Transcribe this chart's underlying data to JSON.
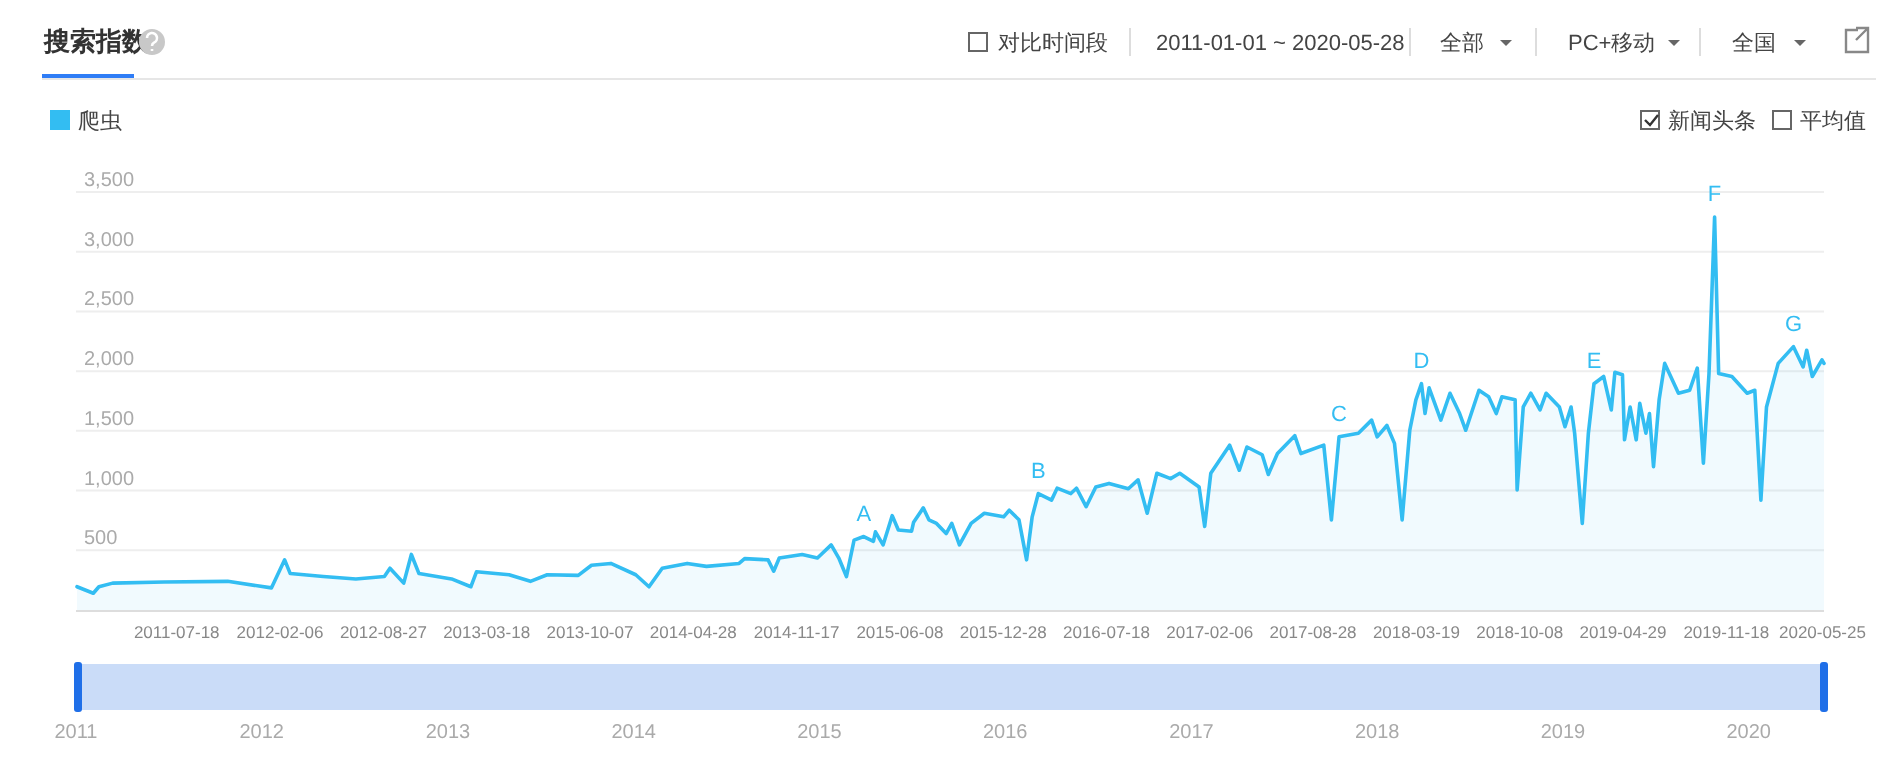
{
  "chart_data": {
    "type": "area",
    "title": "搜索指数",
    "legend": "top left",
    "xlim": [
      "2011-01-01",
      "2020-05-28"
    ],
    "xticks": [
      "2011-07-18",
      "2012-02-06",
      "2012-08-27",
      "2013-03-18",
      "2013-10-07",
      "2014-04-28",
      "2014-11-17",
      "2015-06-08",
      "2015-12-28",
      "2016-07-18",
      "2017-02-06",
      "2017-08-28",
      "2018-03-19",
      "2018-10-08",
      "2019-04-29",
      "2019-11-18",
      "2020-05-25"
    ],
    "x2lim": [
      "2011-01-01",
      "2020-05-28"
    ],
    "x2ticks": [
      {
        "value": "2011-01-01",
        "label": "2011"
      },
      {
        "value": "2012-01-01",
        "label": "2012"
      },
      {
        "value": "2013-01-01",
        "label": "2013"
      },
      {
        "value": "2014-01-01",
        "label": "2014"
      },
      {
        "value": "2015-01-01",
        "label": "2015"
      },
      {
        "value": "2016-01-01",
        "label": "2016"
      },
      {
        "value": "2017-01-01",
        "label": "2017"
      },
      {
        "value": "2018-01-01",
        "label": "2018"
      },
      {
        "value": "2019-01-01",
        "label": "2019"
      },
      {
        "value": "2020-01-01",
        "label": "2020"
      }
    ],
    "ylim": [
      0,
      3500
    ],
    "yticks": [
      500,
      {
        "value": 1000,
        "label": "1,000"
      },
      {
        "value": 1500,
        "label": "1,500"
      },
      {
        "value": 2000,
        "label": "2,000"
      },
      {
        "value": 2500,
        "label": "2,500"
      },
      {
        "value": 3000,
        "label": "3,000"
      },
      {
        "value": 3500,
        "label": "3,500"
      }
    ],
    "grid": "y",
    "series": [
      {
        "name": "爬虫",
        "color": "#33bdf2",
        "x": [
          "2011-01-03",
          "2011-02-04",
          "2011-02-15",
          "2011-03-14",
          "2011-06-23",
          "2011-10-26",
          "2012-01-20",
          "2012-02-15",
          "2012-02-26",
          "2012-05-01",
          "2012-07-04",
          "2012-08-29",
          "2012-09-09",
          "2012-10-06",
          "2012-10-21",
          "2012-11-05",
          "2013-01-08",
          "2013-02-15",
          "2013-02-26",
          "2013-05-01",
          "2013-06-12",
          "2013-07-15",
          "2013-09-14",
          "2013-10-10",
          "2013-11-17",
          "2014-01-05",
          "2014-01-31",
          "2014-02-26",
          "2014-04-16",
          "2014-05-24",
          "2014-07-27",
          "2014-08-07",
          "2014-09-22",
          "2014-10-03",
          "2014-10-14",
          "2014-11-28",
          "2014-12-28",
          "2015-01-24",
          "2015-02-08",
          "2015-02-23",
          "2015-03-10",
          "2015-03-29",
          "2015-04-17",
          "2015-04-21",
          "2015-05-06",
          "2015-05-24",
          "2015-06-05",
          "2015-07-01",
          "2015-07-05",
          "2015-07-24",
          "2015-08-04",
          "2015-08-19",
          "2015-09-07",
          "2015-09-18",
          "2015-10-03",
          "2015-10-26",
          "2015-11-21",
          "2015-12-29",
          "2016-01-09",
          "2016-01-28",
          "2016-02-12",
          "2016-02-23",
          "2016-03-06",
          "2016-04-01",
          "2016-04-12",
          "2016-05-09",
          "2016-05-20",
          "2016-06-08",
          "2016-06-27",
          "2016-07-23",
          "2016-08-30",
          "2016-09-18",
          "2016-10-06",
          "2016-10-25",
          "2016-11-21",
          "2016-12-09",
          "2017-01-16",
          "2017-01-27",
          "2017-02-08",
          "2017-03-17",
          "2017-04-05",
          "2017-04-20",
          "2017-05-20",
          "2017-06-01",
          "2017-06-19",
          "2017-07-23",
          "2017-08-04",
          "2017-09-18",
          "2017-10-03",
          "2017-10-18",
          "2017-11-25",
          "2017-12-21",
          "2018-01-01",
          "2018-01-20",
          "2018-02-04",
          "2018-02-19",
          "2018-03-06",
          "2018-03-18",
          "2018-03-29",
          "2018-04-05",
          "2018-04-13",
          "2018-05-06",
          "2018-05-24",
          "2018-06-12",
          "2018-06-24",
          "2018-07-20",
          "2018-08-08",
          "2018-08-23",
          "2018-09-03",
          "2018-09-29",
          "2018-10-03",
          "2018-10-15",
          "2018-10-30",
          "2018-11-17",
          "2018-11-29",
          "2018-12-25",
          "2019-01-05",
          "2019-01-17",
          "2019-01-24",
          "2019-02-08",
          "2019-02-20",
          "2019-03-03",
          "2019-03-22",
          "2019-04-06",
          "2019-04-13",
          "2019-04-28",
          "2019-05-02",
          "2019-05-13",
          "2019-05-25",
          "2019-06-01",
          "2019-06-13",
          "2019-06-20",
          "2019-06-28",
          "2019-07-09",
          "2019-07-20",
          "2019-08-16",
          "2019-09-07",
          "2019-09-22",
          "2019-10-04",
          "2019-10-15",
          "2019-10-26",
          "2019-11-03",
          "2019-11-29",
          "2019-12-29",
          "2020-01-13",
          "2020-01-25",
          "2020-02-05",
          "2020-02-28",
          "2020-03-29",
          "2020-04-17",
          "2020-04-24",
          "2020-05-05",
          "2020-05-24",
          "2020-05-28"
        ],
        "values": [
          195,
          140,
          195,
          225,
          235,
          240,
          185,
          420,
          305,
          280,
          260,
          280,
          350,
          225,
          465,
          305,
          260,
          195,
          320,
          295,
          240,
          295,
          290,
          375,
          390,
          295,
          195,
          350,
          390,
          365,
          390,
          430,
          420,
          325,
          435,
          465,
          435,
          545,
          435,
          280,
          585,
          615,
          575,
          655,
          545,
          790,
          670,
          660,
          735,
          855,
          755,
          725,
          640,
          725,
          545,
          725,
          810,
          780,
          835,
          755,
          420,
          780,
          975,
          920,
          1020,
          975,
          1020,
          865,
          1030,
          1060,
          1015,
          1090,
          810,
          1145,
          1100,
          1145,
          1030,
          700,
          1145,
          1380,
          1170,
          1365,
          1300,
          1135,
          1310,
          1460,
          1310,
          1380,
          755,
          1450,
          1480,
          1590,
          1450,
          1545,
          1395,
          755,
          1505,
          1760,
          1895,
          1645,
          1860,
          1590,
          1815,
          1645,
          1505,
          1840,
          1785,
          1645,
          1785,
          1760,
          1005,
          1700,
          1815,
          1675,
          1815,
          1700,
          1535,
          1700,
          1480,
          725,
          1480,
          1895,
          1955,
          1675,
          1990,
          1970,
          1425,
          1700,
          1425,
          1730,
          1480,
          1645,
          1200,
          1760,
          2065,
          1815,
          1840,
          2025,
          1230,
          1980,
          3290,
          1980,
          1955,
          1815,
          1840,
          920,
          1700,
          2065,
          2205,
          2035,
          2175,
          1955,
          2095,
          2065
        ]
      }
    ],
    "annotations": [
      {
        "text": "A",
        "x": "2015-03-29",
        "y": 615
      },
      {
        "text": "B",
        "x": "2016-03-06",
        "y": 975
      },
      {
        "text": "C",
        "x": "2017-10-18",
        "y": 1450
      },
      {
        "text": "D",
        "x": "2018-03-29",
        "y": 1895
      },
      {
        "text": "E",
        "x": "2019-03-03",
        "y": 1895
      },
      {
        "text": "F",
        "x": "2019-10-26",
        "y": 3290
      },
      {
        "text": "G",
        "x": "2020-03-29",
        "y": 2205
      },
      "对比时间段",
      "2011-01-01 ~ 2020-05-28",
      "全部",
      "PC+移动",
      "全国",
      "新闻头条",
      "平均值"
    ]
  }
}
